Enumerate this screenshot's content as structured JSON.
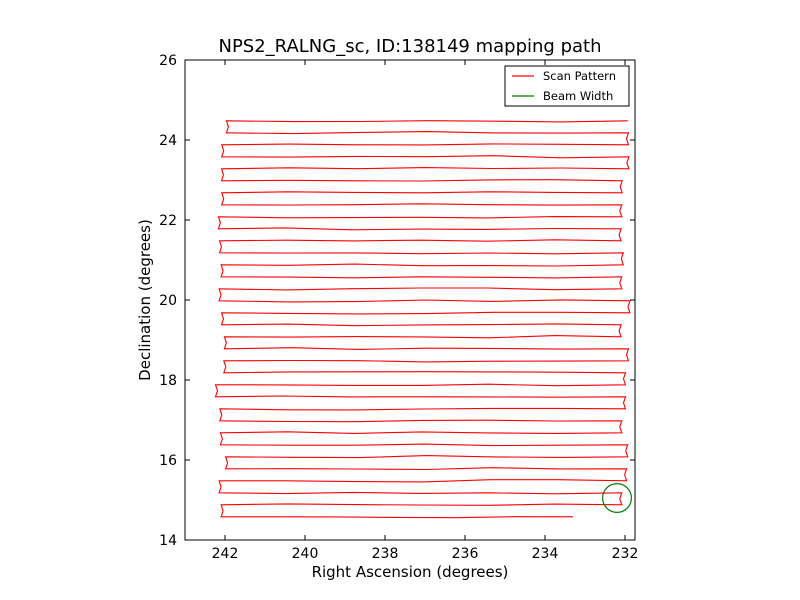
{
  "chart_data": {
    "type": "line",
    "title": "NPS2_RALNG_sc, ID:138149 mapping path",
    "xlabel": "Right Ascension (degrees)",
    "ylabel": "Declination (degrees)",
    "xlim": [
      243,
      231.75
    ],
    "ylim": [
      14,
      26
    ],
    "x_inverted": true,
    "x_ticks": [
      242,
      240,
      238,
      236,
      234,
      232
    ],
    "y_ticks": [
      14,
      16,
      18,
      20,
      22,
      24,
      26
    ],
    "grid": false,
    "legend_position": "top-right",
    "series": [
      {
        "name": "Scan Pattern",
        "color": "#ff0000",
        "kind": "raster-scan",
        "ra_east": 242.1,
        "ra_west": 232.1,
        "dec_start": 14.58,
        "dec_end": 24.52,
        "row_spacing": 0.3,
        "end_ra": 233.3
      },
      {
        "name": "Beam Width",
        "color": "#007f00",
        "kind": "circle",
        "center": [
          232.2,
          15.05
        ],
        "radius_deg": 0.36
      }
    ]
  }
}
